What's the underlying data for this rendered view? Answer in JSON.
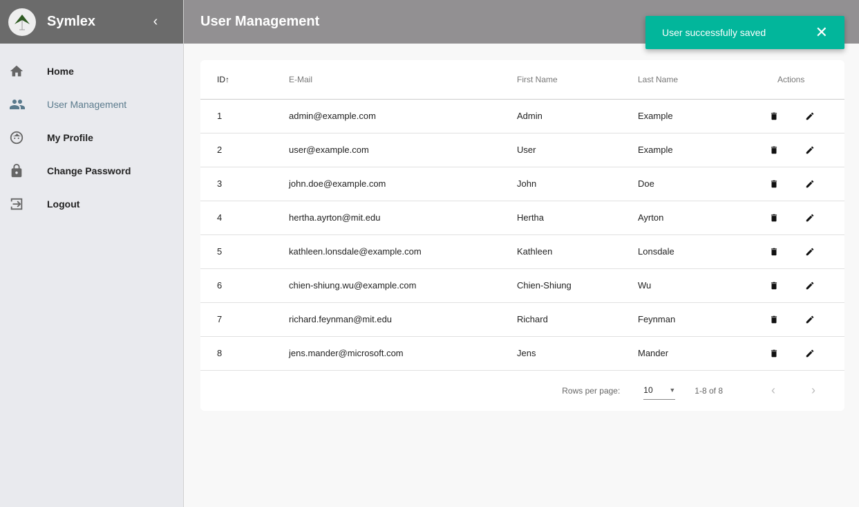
{
  "sidebar": {
    "brand": "Symlex",
    "collapse_icon": "chevron-left",
    "items": [
      {
        "label": "Home",
        "icon": "home"
      },
      {
        "label": "User Management",
        "icon": "people",
        "active": true
      },
      {
        "label": "My Profile",
        "icon": "face"
      },
      {
        "label": "Change Password",
        "icon": "lock"
      },
      {
        "label": "Logout",
        "icon": "exit"
      }
    ]
  },
  "header": {
    "title": "User Management"
  },
  "toast": {
    "message": "User successfully saved",
    "color": "#02b69b"
  },
  "table": {
    "columns": [
      "ID",
      "E-Mail",
      "First Name",
      "Last Name",
      "Actions"
    ],
    "sort": "ID ascending",
    "rows": [
      [
        "1",
        "admin@example.com",
        "Admin",
        "Example"
      ],
      [
        "2",
        "user@example.com",
        "User",
        "Example"
      ],
      [
        "3",
        "john.doe@example.com",
        "John",
        "Doe"
      ],
      [
        "4",
        "hertha.ayrton@mit.edu",
        "Hertha",
        "Ayrton"
      ],
      [
        "5",
        "kathleen.lonsdale@example.com",
        "Kathleen",
        "Lonsdale"
      ],
      [
        "6",
        "chien-shiung.wu@example.com",
        "Chien-Shiung",
        "Wu"
      ],
      [
        "7",
        "richard.feynman@mit.edu",
        "Richard",
        "Feynman"
      ],
      [
        "8",
        "jens.mander@microsoft.com",
        "Jens",
        "Mander"
      ]
    ]
  },
  "pagination": {
    "rows_per_page_label": "Rows per page:",
    "rows_per_page": "10",
    "range": "1-8 of 8"
  }
}
